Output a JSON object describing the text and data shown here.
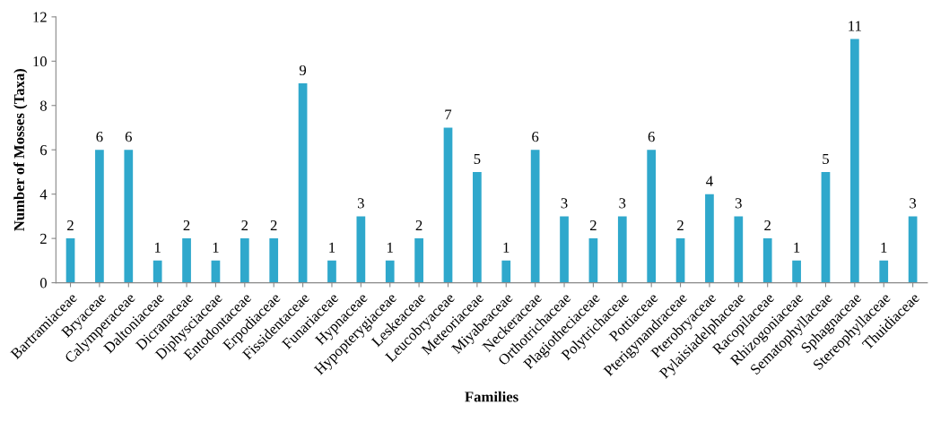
{
  "chart_data": {
    "type": "bar",
    "xlabel": "Families",
    "ylabel": "Number of Mosses (Taxa)",
    "categories": [
      "Bartramiaceae",
      "Bryaceae",
      "Calymperaceae",
      "Daltoniaceae",
      "Dicranaceae",
      "Diphysciaceae",
      "Entodontaceae",
      "Erpodiaceae",
      "Fissidentaceae",
      "Funariaceae",
      "Hypnaceae",
      "Hypopterygiaceae",
      "Leskeaceae",
      "Leucobryaceae",
      "Meteoriaceae",
      "Miyabeaceae",
      "Neckeraceae",
      "Orthotrichaceae",
      "Plagiotheciaceae",
      "Polytrichaceae",
      "Pottiaceae",
      "Pterigynandraceae",
      "Pterobryaceae",
      "Pylaisiadelphaceae",
      "Racopilaceae",
      "Rhizogoniaceae",
      "Sematophyllaceae",
      "Sphagnaceae",
      "Stereophyllaceae",
      "Thuidiaceae"
    ],
    "values": [
      2,
      6,
      6,
      1,
      2,
      1,
      2,
      2,
      9,
      1,
      3,
      1,
      2,
      7,
      5,
      1,
      6,
      3,
      2,
      3,
      6,
      2,
      4,
      3,
      2,
      1,
      5,
      11,
      1,
      3
    ],
    "color": "#2fa8cc",
    "ylim": [
      0,
      12
    ],
    "yticks": [
      0,
      2,
      4,
      6,
      8,
      10,
      12
    ],
    "grid": false,
    "data_labels": true,
    "legend": false
  }
}
